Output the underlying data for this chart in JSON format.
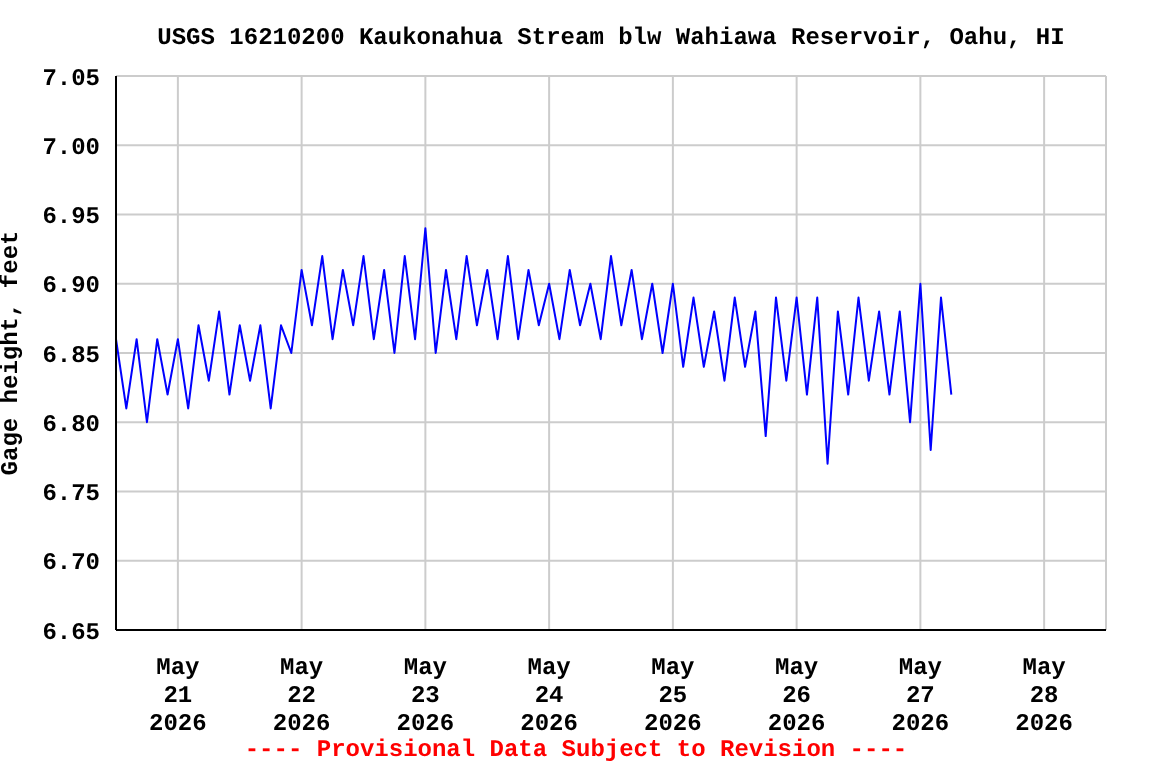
{
  "chart_data": {
    "type": "line",
    "title": "USGS 16210200 Kaukonahua Stream blw Wahiawa Reservoir, Oahu, HI",
    "ylabel": "Gage height, feet",
    "annotations": [
      "---- Provisional Data Subject to Revision ----"
    ],
    "x": [
      "2026-05-20T12:00",
      "2026-05-20T14:00",
      "2026-05-20T16:00",
      "2026-05-20T18:00",
      "2026-05-20T20:00",
      "2026-05-20T22:00",
      "2026-05-21T00:00",
      "2026-05-21T02:00",
      "2026-05-21T04:00",
      "2026-05-21T06:00",
      "2026-05-21T08:00",
      "2026-05-21T10:00",
      "2026-05-21T12:00",
      "2026-05-21T14:00",
      "2026-05-21T16:00",
      "2026-05-21T18:00",
      "2026-05-21T20:00",
      "2026-05-21T22:00",
      "2026-05-22T00:00",
      "2026-05-22T02:00",
      "2026-05-22T04:00",
      "2026-05-22T06:00",
      "2026-05-22T08:00",
      "2026-05-22T10:00",
      "2026-05-22T12:00",
      "2026-05-22T14:00",
      "2026-05-22T16:00",
      "2026-05-22T18:00",
      "2026-05-22T20:00",
      "2026-05-22T22:00",
      "2026-05-23T00:00",
      "2026-05-23T02:00",
      "2026-05-23T04:00",
      "2026-05-23T06:00",
      "2026-05-23T08:00",
      "2026-05-23T10:00",
      "2026-05-23T12:00",
      "2026-05-23T14:00",
      "2026-05-23T16:00",
      "2026-05-23T18:00",
      "2026-05-23T20:00",
      "2026-05-23T22:00",
      "2026-05-24T00:00",
      "2026-05-24T02:00",
      "2026-05-24T04:00",
      "2026-05-24T06:00",
      "2026-05-24T08:00",
      "2026-05-24T10:00",
      "2026-05-24T12:00",
      "2026-05-24T14:00",
      "2026-05-24T16:00",
      "2026-05-24T18:00",
      "2026-05-24T20:00",
      "2026-05-24T22:00",
      "2026-05-25T00:00",
      "2026-05-25T02:00",
      "2026-05-25T04:00",
      "2026-05-25T06:00",
      "2026-05-25T08:00",
      "2026-05-25T10:00",
      "2026-05-25T12:00",
      "2026-05-25T14:00",
      "2026-05-25T16:00",
      "2026-05-25T18:00",
      "2026-05-25T20:00",
      "2026-05-25T22:00",
      "2026-05-26T00:00",
      "2026-05-26T02:00",
      "2026-05-26T04:00",
      "2026-05-26T06:00",
      "2026-05-26T08:00",
      "2026-05-26T10:00",
      "2026-05-26T12:00",
      "2026-05-26T14:00",
      "2026-05-26T16:00",
      "2026-05-26T18:00",
      "2026-05-26T20:00",
      "2026-05-26T22:00",
      "2026-05-27T00:00",
      "2026-05-27T02:00",
      "2026-05-27T04:00",
      "2026-05-27T06:00"
    ],
    "series": [
      {
        "color": "#0000ff",
        "values": [
          6.86,
          6.81,
          6.86,
          6.8,
          6.86,
          6.82,
          6.86,
          6.81,
          6.87,
          6.83,
          6.88,
          6.82,
          6.87,
          6.83,
          6.87,
          6.81,
          6.87,
          6.85,
          6.91,
          6.87,
          6.92,
          6.86,
          6.91,
          6.87,
          6.92,
          6.86,
          6.91,
          6.85,
          6.92,
          6.86,
          6.94,
          6.85,
          6.91,
          6.86,
          6.92,
          6.87,
          6.91,
          6.86,
          6.92,
          6.86,
          6.91,
          6.87,
          6.9,
          6.86,
          6.91,
          6.87,
          6.9,
          6.86,
          6.92,
          6.87,
          6.91,
          6.86,
          6.9,
          6.85,
          6.9,
          6.84,
          6.89,
          6.84,
          6.88,
          6.83,
          6.89,
          6.84,
          6.88,
          6.79,
          6.89,
          6.83,
          6.89,
          6.82,
          6.89,
          6.77,
          6.88,
          6.82,
          6.89,
          6.83,
          6.88,
          6.82,
          6.88,
          6.8,
          6.9,
          6.78,
          6.89,
          6.82
        ]
      }
    ],
    "xlim": [
      "2026-05-20T12:00",
      "2026-05-28T12:00"
    ],
    "xticks": [
      {
        "value": "2026-05-21",
        "label": "May\n21\n2026"
      },
      {
        "value": "2026-05-22",
        "label": "May\n22\n2026"
      },
      {
        "value": "2026-05-23",
        "label": "May\n23\n2026"
      },
      {
        "value": "2026-05-24",
        "label": "May\n24\n2026"
      },
      {
        "value": "2026-05-25",
        "label": "May\n25\n2026"
      },
      {
        "value": "2026-05-26",
        "label": "May\n26\n2026"
      },
      {
        "value": "2026-05-27",
        "label": "May\n27\n2026"
      },
      {
        "value": "2026-05-28",
        "label": "May\n28\n2026"
      }
    ],
    "ylim": [
      6.65,
      7.05
    ],
    "yticks": [
      {
        "value": 6.65,
        "label": "6.65"
      },
      {
        "value": 6.7,
        "label": "6.70"
      },
      {
        "value": 6.75,
        "label": "6.75"
      },
      {
        "value": 6.8,
        "label": "6.80"
      },
      {
        "value": 6.85,
        "label": "6.85"
      },
      {
        "value": 6.9,
        "label": "6.90"
      },
      {
        "value": 6.95,
        "label": "6.95"
      },
      {
        "value": 7.0,
        "label": "7.00"
      },
      {
        "value": 7.05,
        "label": "7.05"
      }
    ],
    "grid": true,
    "marker": "none",
    "line_style": "solid",
    "legend": false
  }
}
